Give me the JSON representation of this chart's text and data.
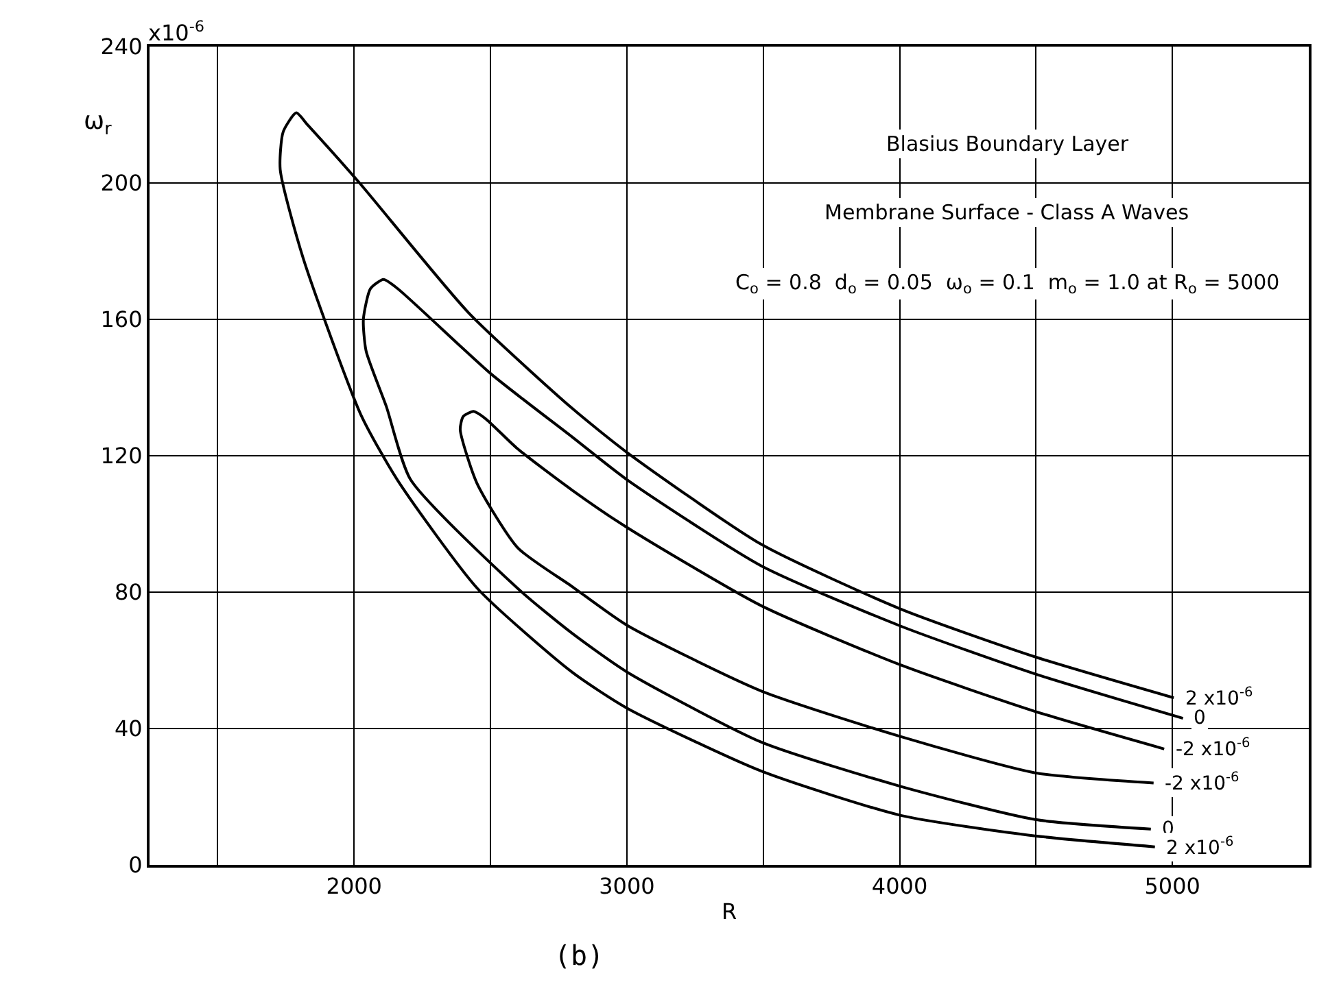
{
  "chart_data": {
    "type": "line",
    "title": "Blasius Boundary Layer",
    "subtitle": "Membrane Surface - Class A Waves",
    "xlabel": "R",
    "ylabel": "ω$_{r}$",
    "series": [
      {
        "color": "#000000",
        "x": [
          4936,
          4497,
          4005,
          3493,
          3000,
          2798,
          2453,
          2158,
          2025,
          1813,
          1729,
          1740,
          1788,
          1830,
          2020,
          2419,
          2798,
          3000,
          3493,
          4005,
          4497,
          5005
        ],
        "values": [
          5.3,
          8.5,
          14.5,
          27.5,
          46,
          56.6,
          81,
          113,
          132,
          178,
          204,
          215,
          220.6,
          217,
          200,
          162,
          134,
          121,
          94,
          75,
          61,
          49
        ]
      },
      {
        "color": "#000000",
        "x": [
          4921,
          4497,
          4005,
          3493,
          3000,
          2798,
          2601,
          2207,
          2118,
          2044,
          2034,
          2060,
          2108,
          2160,
          2502,
          2798,
          3000,
          3493,
          4005,
          4497,
          5039
        ],
        "values": [
          10.5,
          13.3,
          23,
          36,
          56.6,
          68,
          81,
          113,
          134.5,
          150.7,
          160,
          169,
          171.7,
          169,
          144,
          125.6,
          113,
          87.7,
          70,
          56,
          43
        ]
      },
      {
        "color": "#000000",
        "x": [
          4931,
          4497,
          4005,
          3493,
          3000,
          2800,
          2600,
          2450,
          2389,
          2400,
          2438,
          2480,
          2600,
          2798,
          3000,
          3493,
          4005,
          4497,
          4970
        ],
        "values": [
          24,
          27,
          37.6,
          51,
          70.3,
          81.6,
          93,
          112,
          127.7,
          131.5,
          133,
          131,
          122,
          110,
          99,
          76,
          58.6,
          45,
          34
        ]
      }
    ],
    "xlim": [
      1250,
      5500
    ],
    "ylim": [
      0,
      240
    ],
    "xticks": [
      {
        "value": 1500,
        "label": null
      },
      2000,
      {
        "value": 2500,
        "label": null
      },
      3000,
      {
        "value": 3500,
        "label": null
      },
      4000,
      {
        "value": 4500,
        "label": null
      },
      5000
    ],
    "yticks": [
      0,
      40,
      80,
      120,
      160,
      200,
      240
    ],
    "grid": true,
    "marker": "none",
    "line_style": "solid",
    "annotations": [
      "C$_{o}$ = 0.8  d$_{o}$ = 0.05  ω$_{o}$ = 0.1  m$_{o}$ = 1.0 at R$_{o}$ = 5000",
      {
        "text": "2 x10$^{-6}$",
        "x": 5005,
        "y": 49
      },
      {
        "text": "0",
        "x": 5039,
        "y": 43
      },
      {
        "text": "-2 x10$^{-6}$",
        "x": 4970,
        "y": 34
      },
      {
        "text": "-2 x10$^{-6}$",
        "x": 4931,
        "y": 24
      },
      {
        "text": "0",
        "x": 4921,
        "y": 10.5
      },
      {
        "text": "2 x10$^{-6}$",
        "x": 4936,
        "y": 5.3
      },
      "(b)",
      "x10$^{-6}$"
    ]
  }
}
